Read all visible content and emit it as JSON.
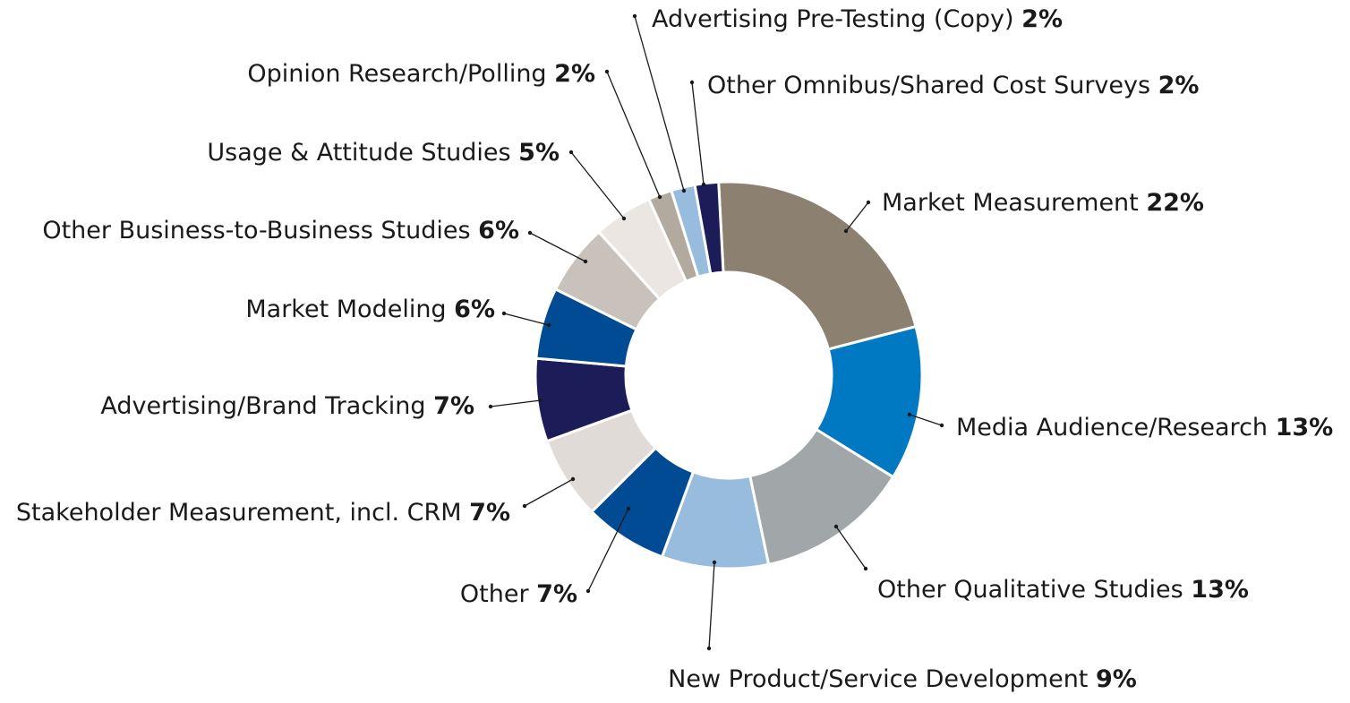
{
  "chart_data": {
    "type": "pie",
    "variant": "donut",
    "title": "",
    "legend": "none",
    "slices": [
      {
        "label": "Market Measurement",
        "value": 22,
        "pct_label": "22%",
        "color": "#8c8070"
      },
      {
        "label": "Media Audience/Research",
        "value": 13,
        "pct_label": "13%",
        "color": "#0079c2"
      },
      {
        "label": "Other Qualitative Studies",
        "value": 13,
        "pct_label": "13%",
        "color": "#a1a6a8"
      },
      {
        "label": "New Product/Service Development",
        "value": 9,
        "pct_label": "9%",
        "color": "#97bcde"
      },
      {
        "label": "Other",
        "value": 7,
        "pct_label": "7%",
        "color": "#014a94"
      },
      {
        "label": "Stakeholder Measurement, incl. CRM",
        "value": 7,
        "pct_label": "7%",
        "color": "#e1dbd8"
      },
      {
        "label": "Advertising/Brand Tracking",
        "value": 7,
        "pct_label": "7%",
        "color": "#1c1c59"
      },
      {
        "label": "Market Modeling",
        "value": 6,
        "pct_label": "6%",
        "color": "#014a94"
      },
      {
        "label": "Other Business-to-Business Studies",
        "value": 6,
        "pct_label": "6%",
        "color": "#c9c1bb"
      },
      {
        "label": "Usage & Attitude Studies",
        "value": 5,
        "pct_label": "5%",
        "color": "#ebe6e2"
      },
      {
        "label": "Opinion Research/Polling",
        "value": 2,
        "pct_label": "2%",
        "color": "#b2a99f"
      },
      {
        "label": "Advertising Pre-Testing (Copy)",
        "value": 2,
        "pct_label": "2%",
        "color": "#97bcde"
      },
      {
        "label": "Other Omnibus/Shared Cost Surveys",
        "value": 2,
        "pct_label": "2%",
        "color": "#1c1c59"
      }
    ]
  }
}
